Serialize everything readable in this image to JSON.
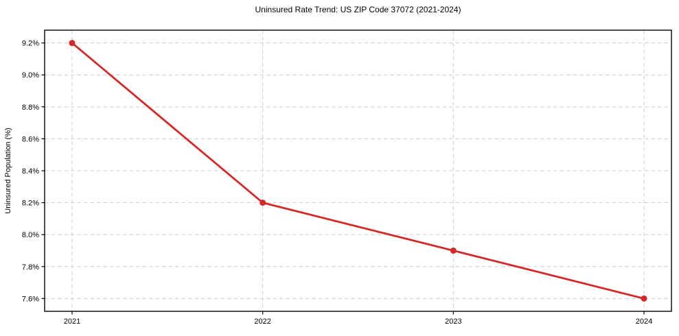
{
  "chart_data": {
    "type": "line",
    "title": "Uninsured Rate Trend: US ZIP Code 37072 (2021-2024)",
    "xlabel": "",
    "ylabel": "Uninsured Population (%)",
    "x": [
      2021,
      2022,
      2023,
      2024
    ],
    "series": [
      {
        "name": "Uninsured rate",
        "values": [
          9.2,
          8.2,
          7.9,
          7.6
        ]
      }
    ],
    "x_tick_labels": [
      "2021",
      "2022",
      "2023",
      "2024"
    ],
    "y_tick_values": [
      7.6,
      7.8,
      8.0,
      8.2,
      8.4,
      8.6,
      8.8,
      9.0,
      9.2
    ],
    "y_tick_labels": [
      "7.6%",
      "7.8%",
      "8.0%",
      "8.2%",
      "8.4%",
      "8.6%",
      "8.8%",
      "9.0%",
      "9.2%"
    ],
    "xlim": [
      2020.856,
      2024.144
    ],
    "ylim": [
      7.52,
      9.28
    ],
    "grid": "dashed",
    "legend": "none",
    "colors": {
      "line": "#d62728",
      "marker": "#d62728",
      "gridline": "#cccccc",
      "spine": "#000000",
      "background": "#ffffff",
      "text": "#000000"
    }
  }
}
